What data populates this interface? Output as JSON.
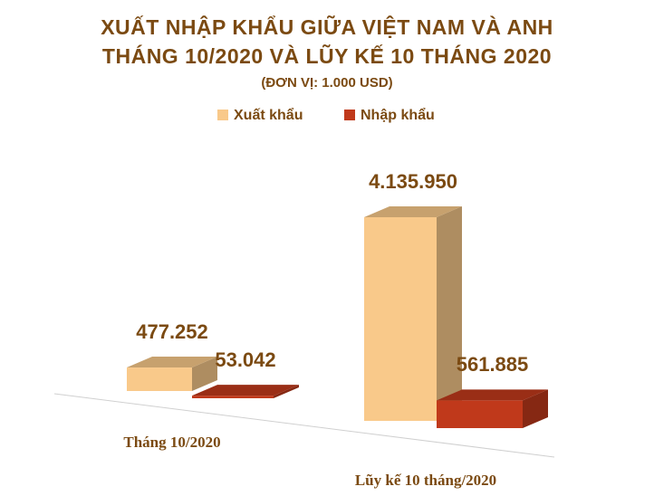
{
  "chart_data": {
    "type": "bar3d",
    "title": [
      "XUẤT NHẬP KHẨU GIỮA VIỆT NAM VÀ ANH",
      "THÁNG 10/2020 VÀ LŨY KẾ 10 THÁNG 2020"
    ],
    "subtitle": "(ĐƠN VỊ: 1.000 USD)",
    "categories": [
      "Tháng 10/2020",
      "Lũy kế 10 tháng/2020"
    ],
    "series": [
      {
        "name": "Xuất khẩu",
        "color": "#f9c98a",
        "values": [
          477252,
          4135950
        ],
        "value_labels": [
          "477.252",
          "4.135.950"
        ]
      },
      {
        "name": "Nhập khẩu",
        "color": "#c0391b",
        "values": [
          53042,
          561885
        ],
        "value_labels": [
          "53.042",
          "561.885"
        ]
      }
    ],
    "legend": "top"
  }
}
